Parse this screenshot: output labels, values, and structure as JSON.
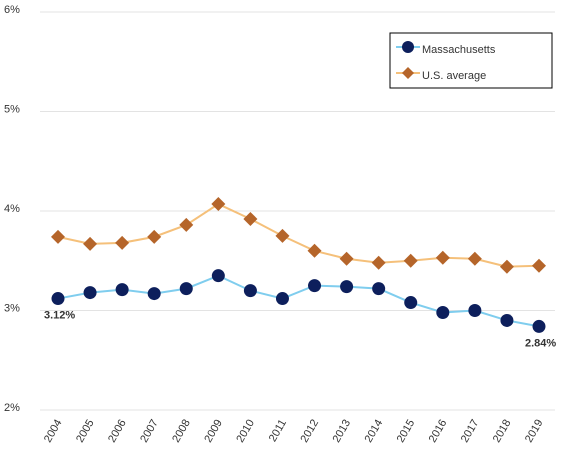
{
  "chart_data": {
    "type": "line",
    "categories": [
      "2004",
      "2005",
      "2006",
      "2007",
      "2008",
      "2009",
      "2010",
      "2011",
      "2012",
      "2013",
      "2014",
      "2015",
      "2016",
      "2017",
      "2018",
      "2019"
    ],
    "series": [
      {
        "name": "Massachusetts",
        "color": "#7fcdee",
        "marker_color": "#0d1f5c",
        "marker": "circle",
        "values": [
          3.12,
          3.18,
          3.21,
          3.17,
          3.22,
          3.35,
          3.2,
          3.12,
          3.25,
          3.24,
          3.22,
          3.08,
          2.98,
          3.0,
          2.9,
          2.84
        ],
        "value_labels": [
          "3.12%",
          null,
          null,
          null,
          null,
          null,
          null,
          null,
          null,
          null,
          null,
          null,
          null,
          null,
          null,
          "2.84%"
        ]
      },
      {
        "name": "U.S. average",
        "color": "#f5c07a",
        "marker_color": "#b5652a",
        "marker": "diamond",
        "values": [
          3.74,
          3.67,
          3.68,
          3.74,
          3.86,
          4.07,
          3.92,
          3.75,
          3.6,
          3.52,
          3.48,
          3.5,
          3.53,
          3.52,
          3.44,
          3.45
        ]
      }
    ],
    "ylim": [
      2,
      6
    ],
    "yticks": [
      {
        "value": 2,
        "label": "2%"
      },
      {
        "value": 3,
        "label": "3%"
      },
      {
        "value": 4,
        "label": "4%"
      },
      {
        "value": 5,
        "label": "5%"
      },
      {
        "value": 6,
        "label": "6%"
      }
    ],
    "grid": true,
    "legend": "top-right"
  }
}
